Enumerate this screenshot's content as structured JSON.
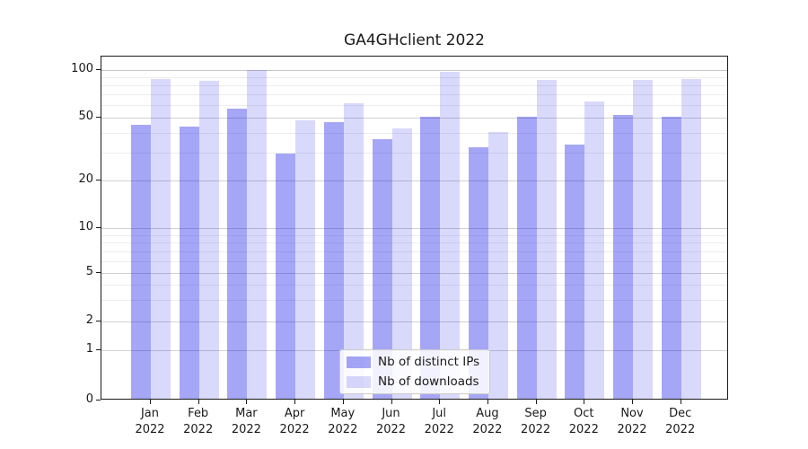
{
  "chart_data": {
    "type": "bar",
    "title": "GA4GHclient 2022",
    "categories": [
      "Jan 2022",
      "Feb 2022",
      "Mar 2022",
      "Apr 2022",
      "May 2022",
      "Jun 2022",
      "Jul 2022",
      "Aug 2022",
      "Sep 2022",
      "Oct 2022",
      "Nov 2022",
      "Dec 2022"
    ],
    "series": [
      {
        "name": "Nb of distinct IPs",
        "color": "rgba(0,0,230,0.35)",
        "values": [
          44,
          43,
          56,
          29,
          46,
          36,
          50,
          32,
          50,
          33,
          51,
          50
        ]
      },
      {
        "name": "Nb of downloads",
        "color": "rgba(0,0,230,0.15)",
        "values": [
          86,
          83,
          98,
          47,
          60,
          42,
          95,
          40,
          84,
          62,
          85,
          86
        ]
      }
    ],
    "xlabel": "",
    "ylabel": "",
    "yscale": "symlog",
    "yticks": [
      0,
      1,
      2,
      5,
      10,
      20,
      50,
      100
    ],
    "minor_yticks": [
      3,
      4,
      6,
      7,
      8,
      9,
      30,
      40,
      60,
      70,
      80,
      90
    ],
    "ylim": [
      0,
      120
    ],
    "grid": "on",
    "legend_position": "lower center"
  }
}
